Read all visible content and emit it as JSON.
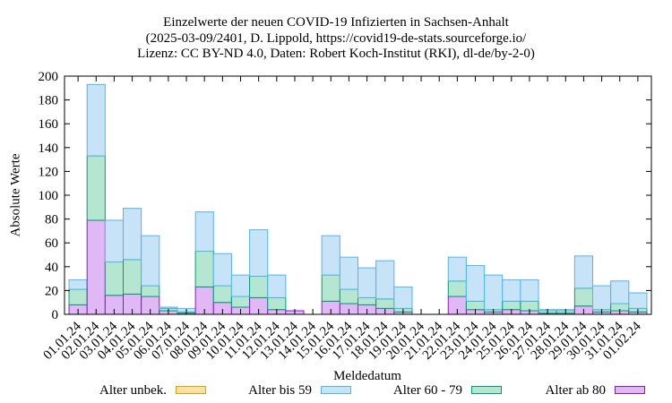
{
  "title_lines": [
    "Einzelwerte der neuen COVID-19 Infizierten in Sachsen-Anhalt",
    "(2025-03-09/2401, D. Lippold, https://covid19-de-stats.sourceforge.io/",
    "Lizenz: CC BY-ND 4.0, Daten: Robert Koch-Institut (RKI), dl-de/by-2-0)"
  ],
  "chart_data": {
    "type": "bar",
    "stacked": true,
    "xlabel": "Meldedatum",
    "ylabel": "Absolute Werte",
    "ylim": [
      0,
      200
    ],
    "yticks": [
      0,
      20,
      40,
      60,
      80,
      100,
      120,
      140,
      160,
      180,
      200
    ],
    "categories": [
      "01.01.24",
      "02.01.24",
      "03.01.24",
      "04.01.24",
      "05.01.24",
      "06.01.24",
      "07.01.24",
      "08.01.24",
      "09.01.24",
      "10.01.24",
      "11.01.24",
      "12.01.24",
      "13.01.24",
      "14.01.24",
      "15.01.24",
      "16.01.24",
      "17.01.24",
      "18.01.24",
      "19.01.24",
      "20.01.24",
      "21.01.24",
      "22.01.24",
      "23.01.24",
      "24.01.24",
      "25.01.24",
      "26.01.24",
      "27.01.24",
      "28.01.24",
      "29.01.24",
      "30.01.24",
      "31.01.24",
      "01.02.24"
    ],
    "series": [
      {
        "name": "Alter ab 80",
        "color": "#e0b8f5",
        "edge": "#8a18c8",
        "values": [
          8,
          79,
          16,
          17,
          15,
          3,
          1,
          23,
          10,
          6,
          14,
          4,
          3,
          0,
          11,
          9,
          8,
          5,
          2,
          0,
          0,
          15,
          4,
          2,
          4,
          3,
          1,
          1,
          7,
          2,
          3,
          2
        ]
      },
      {
        "name": "Alter 60 - 79",
        "color": "#b4e6d2",
        "edge": "#009e73",
        "values": [
          13,
          54,
          28,
          29,
          9,
          2,
          1,
          30,
          14,
          9,
          18,
          10,
          0,
          0,
          22,
          12,
          6,
          8,
          3,
          0,
          0,
          13,
          7,
          2,
          7,
          8,
          2,
          2,
          15,
          2,
          6,
          3
        ]
      },
      {
        "name": "Alter bis 59",
        "color": "#c6e3f7",
        "edge": "#56b4e9",
        "values": [
          8,
          60,
          35,
          43,
          42,
          1,
          3,
          33,
          27,
          18,
          39,
          19,
          0,
          0,
          33,
          27,
          25,
          32,
          18,
          0,
          0,
          20,
          30,
          29,
          18,
          18,
          1,
          1,
          27,
          20,
          19,
          13
        ]
      },
      {
        "name": "Alter unbek.",
        "color": "#fbe1a8",
        "edge": "#e69f00",
        "values": [
          0,
          0,
          0,
          0,
          0,
          0,
          0,
          0,
          0,
          0,
          0,
          0,
          0,
          0,
          0,
          0,
          0,
          0,
          0,
          0,
          0,
          0,
          0,
          0,
          0,
          0,
          0,
          0,
          0,
          0,
          0,
          0
        ]
      }
    ],
    "legend_order": [
      "Alter unbek.",
      "Alter bis 59",
      "Alter 60 - 79",
      "Alter ab 80"
    ],
    "grid": false,
    "legend_position": "bottom"
  }
}
